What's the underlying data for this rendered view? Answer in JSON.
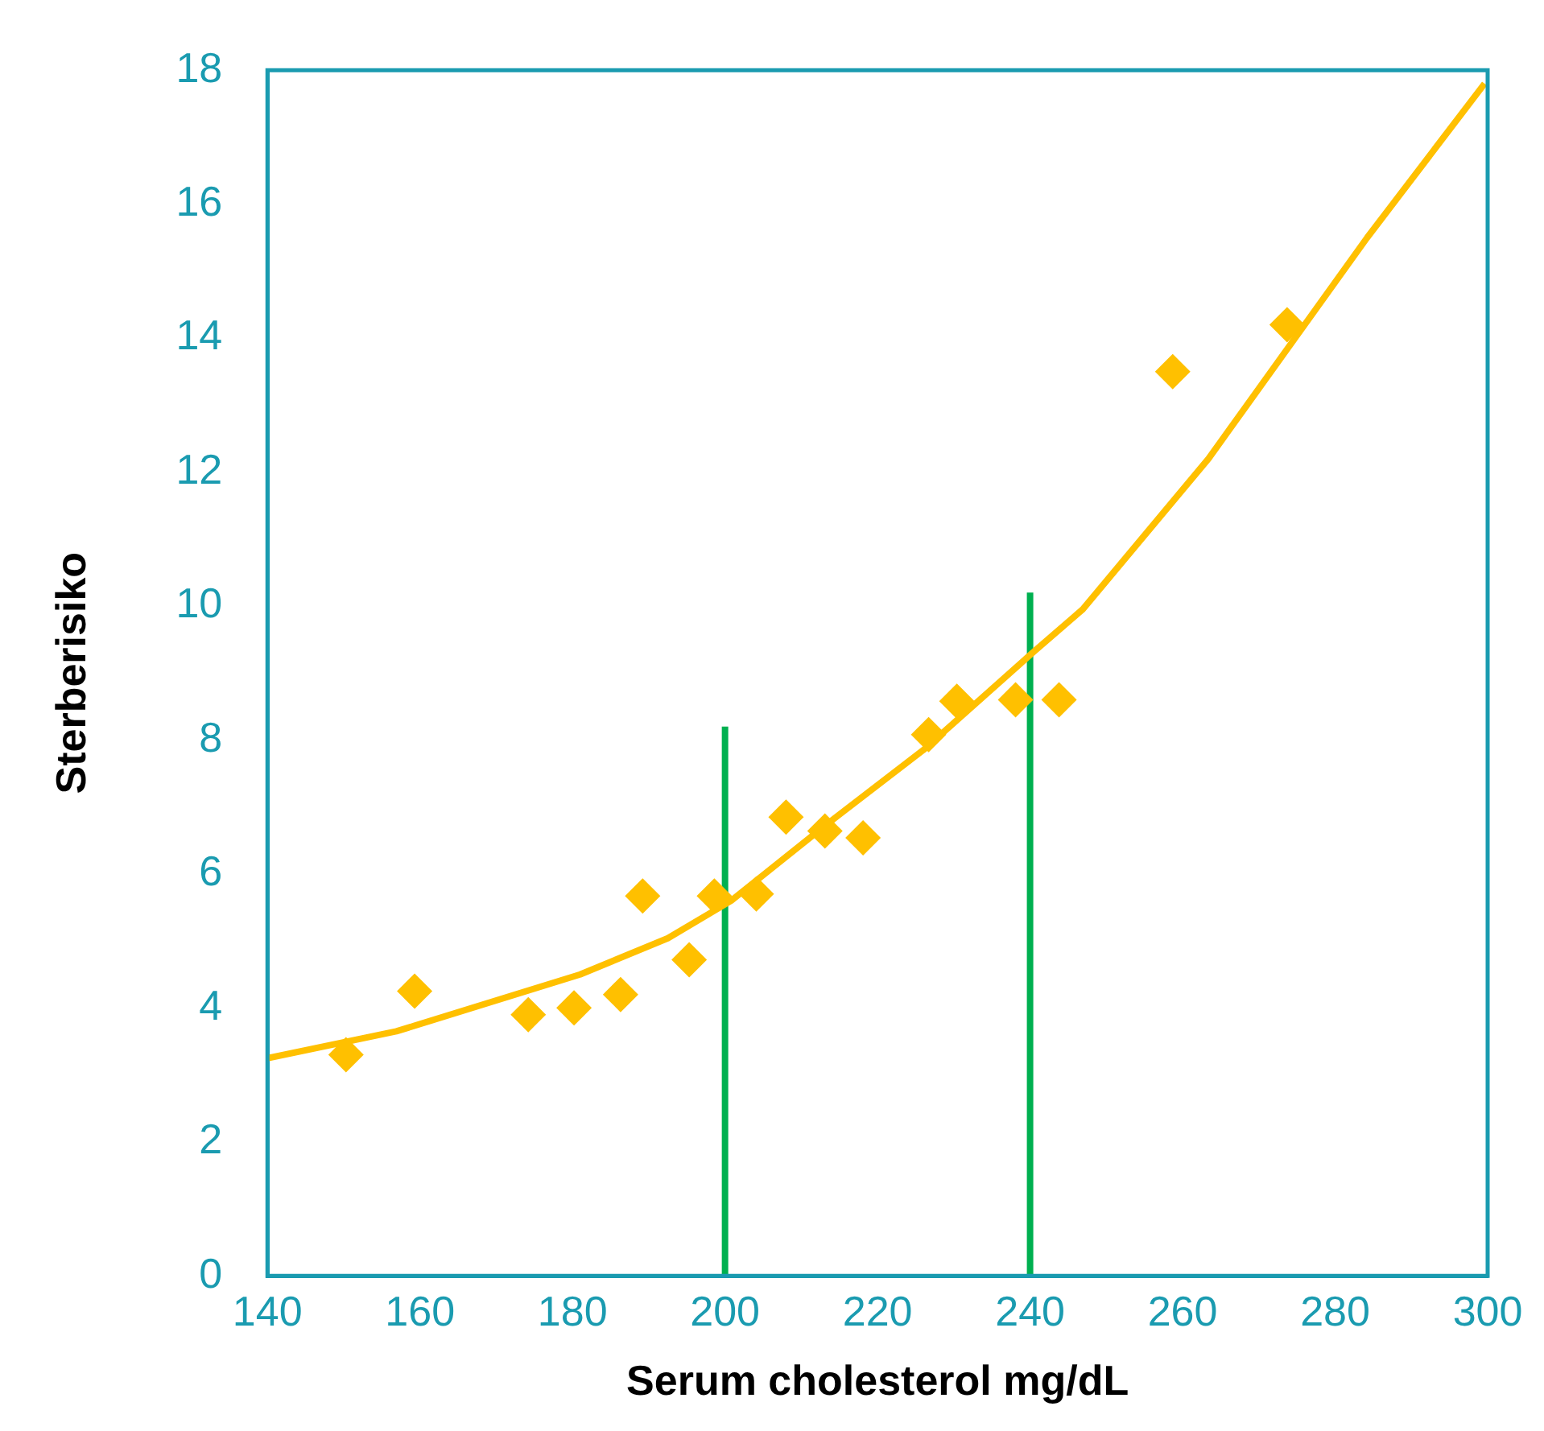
{
  "chart_data": {
    "type": "scatter",
    "xlabel": "Serum cholesterol mg/dL",
    "ylabel": "Sterberisiko",
    "xlim": [
      140,
      300
    ],
    "xticks": [
      140,
      160,
      180,
      200,
      220,
      240,
      260,
      280,
      300
    ],
    "ylim": [
      0,
      18
    ],
    "yticks": [
      0,
      2,
      4,
      6,
      8,
      10,
      12,
      14,
      16,
      18
    ],
    "grid": false,
    "legend": false,
    "marker": "diamond",
    "series": [
      {
        "type": "scatter",
        "color": "#ffc000",
        "x": [
          150.3,
          159.3,
          174.2,
          180.2,
          186.3,
          189.2,
          195.3,
          198.6,
          204.1,
          208.0,
          213.1,
          218.1,
          226.7,
          230.4,
          238.1,
          243.8,
          258.7,
          273.7
        ],
        "values": [
          3.3,
          4.25,
          3.9,
          4.0,
          4.2,
          5.67,
          4.72,
          5.67,
          5.7,
          6.85,
          6.64,
          6.54,
          8.08,
          8.58,
          8.6,
          8.6,
          13.5,
          14.2
        ]
      },
      {
        "type": "line",
        "color": "#ffc000",
        "marker": "none",
        "x": [
          140,
          156.9,
          181,
          192.5,
          200.8,
          214,
          226,
          240.3,
          246.9,
          263.4,
          284.2,
          299.6
        ],
        "values": [
          3.25,
          3.65,
          4.5,
          5.04,
          5.6,
          6.8,
          7.85,
          9.3,
          9.95,
          12.2,
          15.5,
          17.8
        ]
      },
      {
        "type": "line",
        "color": "#00b050",
        "marker": "none",
        "x": [
          200,
          200
        ],
        "values": [
          0,
          8.2
        ]
      },
      {
        "type": "line",
        "color": "#00b050",
        "marker": "none",
        "x": [
          240,
          240
        ],
        "values": [
          0,
          10.2
        ]
      }
    ]
  }
}
